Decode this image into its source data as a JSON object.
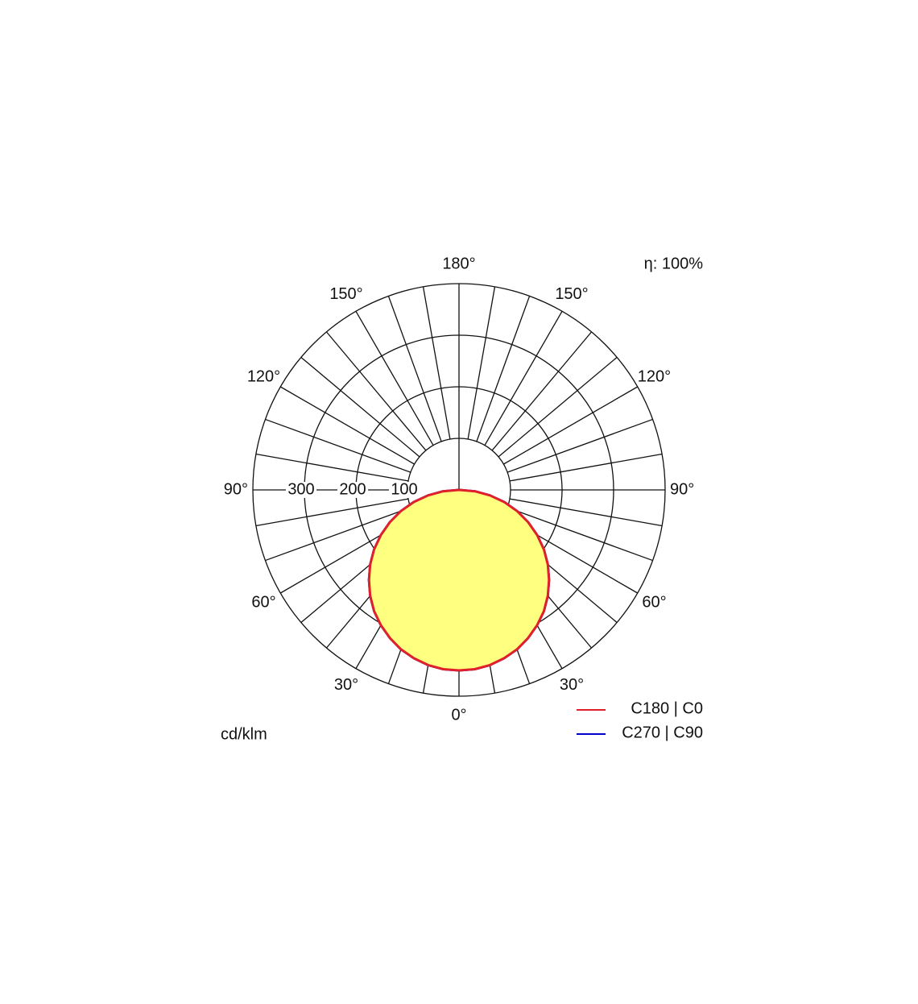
{
  "chart_data": {
    "type": "polar",
    "efficiency_label": "η: 100%",
    "unit_label": "cd/klm",
    "x": [
      0,
      5,
      10,
      15,
      20,
      25,
      30,
      35,
      40,
      45,
      50,
      55,
      60,
      65,
      70,
      75,
      80,
      85,
      90
    ],
    "series": [
      {
        "name": "C270 | C90",
        "color": "#0000cc",
        "values": [
          350,
          349,
          345,
          338,
          329,
          317,
          303,
          287,
          268,
          247,
          225,
          201,
          175,
          148,
          120,
          91,
          61,
          31,
          0
        ]
      },
      {
        "name": "C180 | C0",
        "color": "#e0202a",
        "values": [
          350,
          349,
          345,
          338,
          329,
          317,
          303,
          287,
          268,
          247,
          225,
          201,
          175,
          148,
          120,
          91,
          61,
          31,
          0
        ]
      }
    ],
    "fill_color": "#ffff80",
    "rlim": [
      0,
      400
    ],
    "rticks": [
      100,
      200,
      300
    ],
    "aticks": [
      {
        "value": 0,
        "label": "0°"
      },
      {
        "value": 30,
        "label": "30°"
      },
      {
        "value": 60,
        "label": "60°"
      },
      {
        "value": 90,
        "label": "90°"
      },
      {
        "value": 120,
        "label": "120°"
      },
      {
        "value": 150,
        "label": "150°"
      },
      {
        "value": 180,
        "label": "180°"
      }
    ]
  }
}
